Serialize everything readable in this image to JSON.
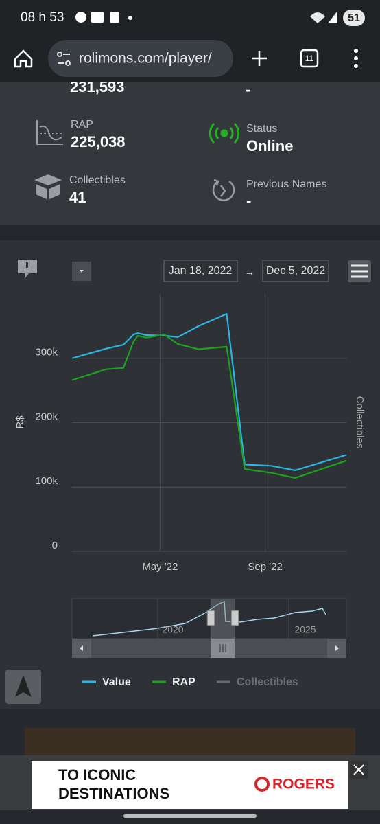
{
  "status_bar": {
    "time": "08 h 53",
    "battery": "51"
  },
  "browser": {
    "url": "rolimons.com/player/",
    "tabs": "11"
  },
  "stats": [
    {
      "value": "231,593"
    },
    {
      "value": "-"
    },
    {
      "label": "RAP",
      "value": "225,038"
    },
    {
      "label": "Status",
      "value": "Online"
    },
    {
      "label": "Collectibles",
      "value": "41"
    },
    {
      "label": "Previous Names",
      "value": "-"
    }
  ],
  "chart_data": {
    "type": "line",
    "date_from": "Jan 18, 2022",
    "range_separator": "→",
    "date_to": "Dec 5, 2022",
    "y_label": "R$",
    "y2_label": "Collectibles",
    "x": [
      "2022-01-18",
      "2022-02-27",
      "2022-03-19",
      "2022-03-31",
      "2022-04-05",
      "2022-04-15",
      "2022-05-06",
      "2022-05-22",
      "2022-06-15",
      "2022-07-18",
      "2022-08-08",
      "2022-09-08",
      "2022-10-06",
      "2022-12-05"
    ],
    "xlim": [
      "2022-01-18",
      "2022-12-05"
    ],
    "xticks": [
      {
        "value": "2022-05-01",
        "label": "May '22"
      },
      {
        "value": "2022-09-01",
        "label": "Sep '22"
      }
    ],
    "ylim": [
      0,
      400000
    ],
    "yticks": [
      0,
      {
        "value": 100000,
        "label": "100k"
      },
      {
        "value": 200000,
        "label": "200k"
      },
      {
        "value": 300000,
        "label": "300k"
      }
    ],
    "grid": true,
    "series": [
      {
        "name": "Value",
        "color": "#2bb5e3",
        "values": [
          300000,
          315000,
          321000,
          337000,
          339000,
          336000,
          335000,
          333000,
          350000,
          369000,
          135000,
          133000,
          126000,
          150000
        ]
      },
      {
        "name": "RAP",
        "color": "#20a020",
        "values": [
          266000,
          283000,
          285000,
          326000,
          335000,
          332000,
          337000,
          322000,
          314000,
          318000,
          128000,
          122000,
          114000,
          141000
        ]
      },
      {
        "name": "Collectibles",
        "color": "#66696d",
        "hidden": true
      }
    ],
    "navigator_labels": [
      "2020",
      "2025"
    ]
  },
  "ad": {
    "line1": "TO ICONIC",
    "line2": "DESTINATIONS",
    "brand": "ROGERS"
  }
}
